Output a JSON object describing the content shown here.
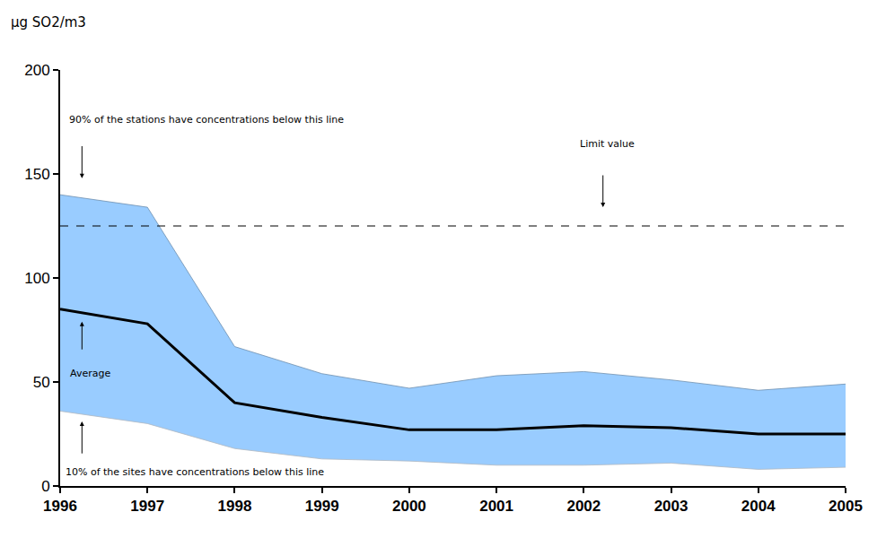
{
  "chart_data": {
    "type": "line",
    "y_label": "µg SO2/m3",
    "x": [
      1996,
      1997,
      1998,
      1999,
      2000,
      2001,
      2002,
      2003,
      2004,
      2005
    ],
    "xlim": [
      1996,
      2005
    ],
    "xticks": [
      1996,
      1997,
      1998,
      1999,
      2000,
      2001,
      2002,
      2003,
      2004,
      2005
    ],
    "ylim": [
      0,
      200
    ],
    "yticks": [
      0,
      50,
      100,
      150,
      200
    ],
    "grid": false,
    "series": [
      {
        "name": "10% of the sites have concentrations below this line",
        "type": "line",
        "color": "#99ccff",
        "line_style": "solid",
        "values": [
          36,
          30,
          18,
          13,
          12,
          10,
          10,
          11,
          8,
          9
        ]
      },
      {
        "name": "90% of the stations have concentrations below this line",
        "type": "area",
        "color": "#99ccff",
        "line_style": "solid",
        "values": [
          140,
          134,
          67,
          54,
          47,
          53,
          55,
          51,
          46,
          49
        ]
      },
      {
        "name": "Average",
        "type": "line",
        "color": "#000000",
        "line_style": "solid",
        "values": [
          85,
          78,
          40,
          33,
          27,
          27,
          29,
          28,
          25,
          25
        ]
      },
      {
        "name": "Limit value",
        "type": "line",
        "color": "#000000",
        "line_style": "dashed",
        "values": [
          125,
          125,
          125,
          125,
          125,
          125,
          125,
          125,
          125,
          125
        ]
      }
    ]
  }
}
